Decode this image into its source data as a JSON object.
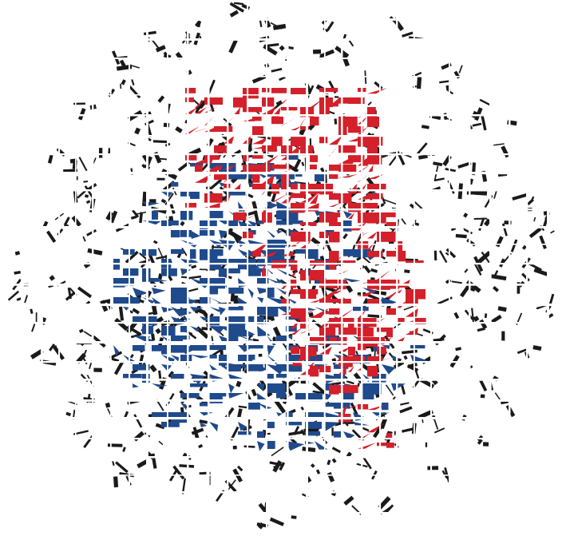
{
  "graphic": {
    "colors": {
      "background": "#ffffff",
      "ink": "#1a1a1a",
      "blue": "#1f4a8c",
      "red": "#d3202a"
    }
  }
}
